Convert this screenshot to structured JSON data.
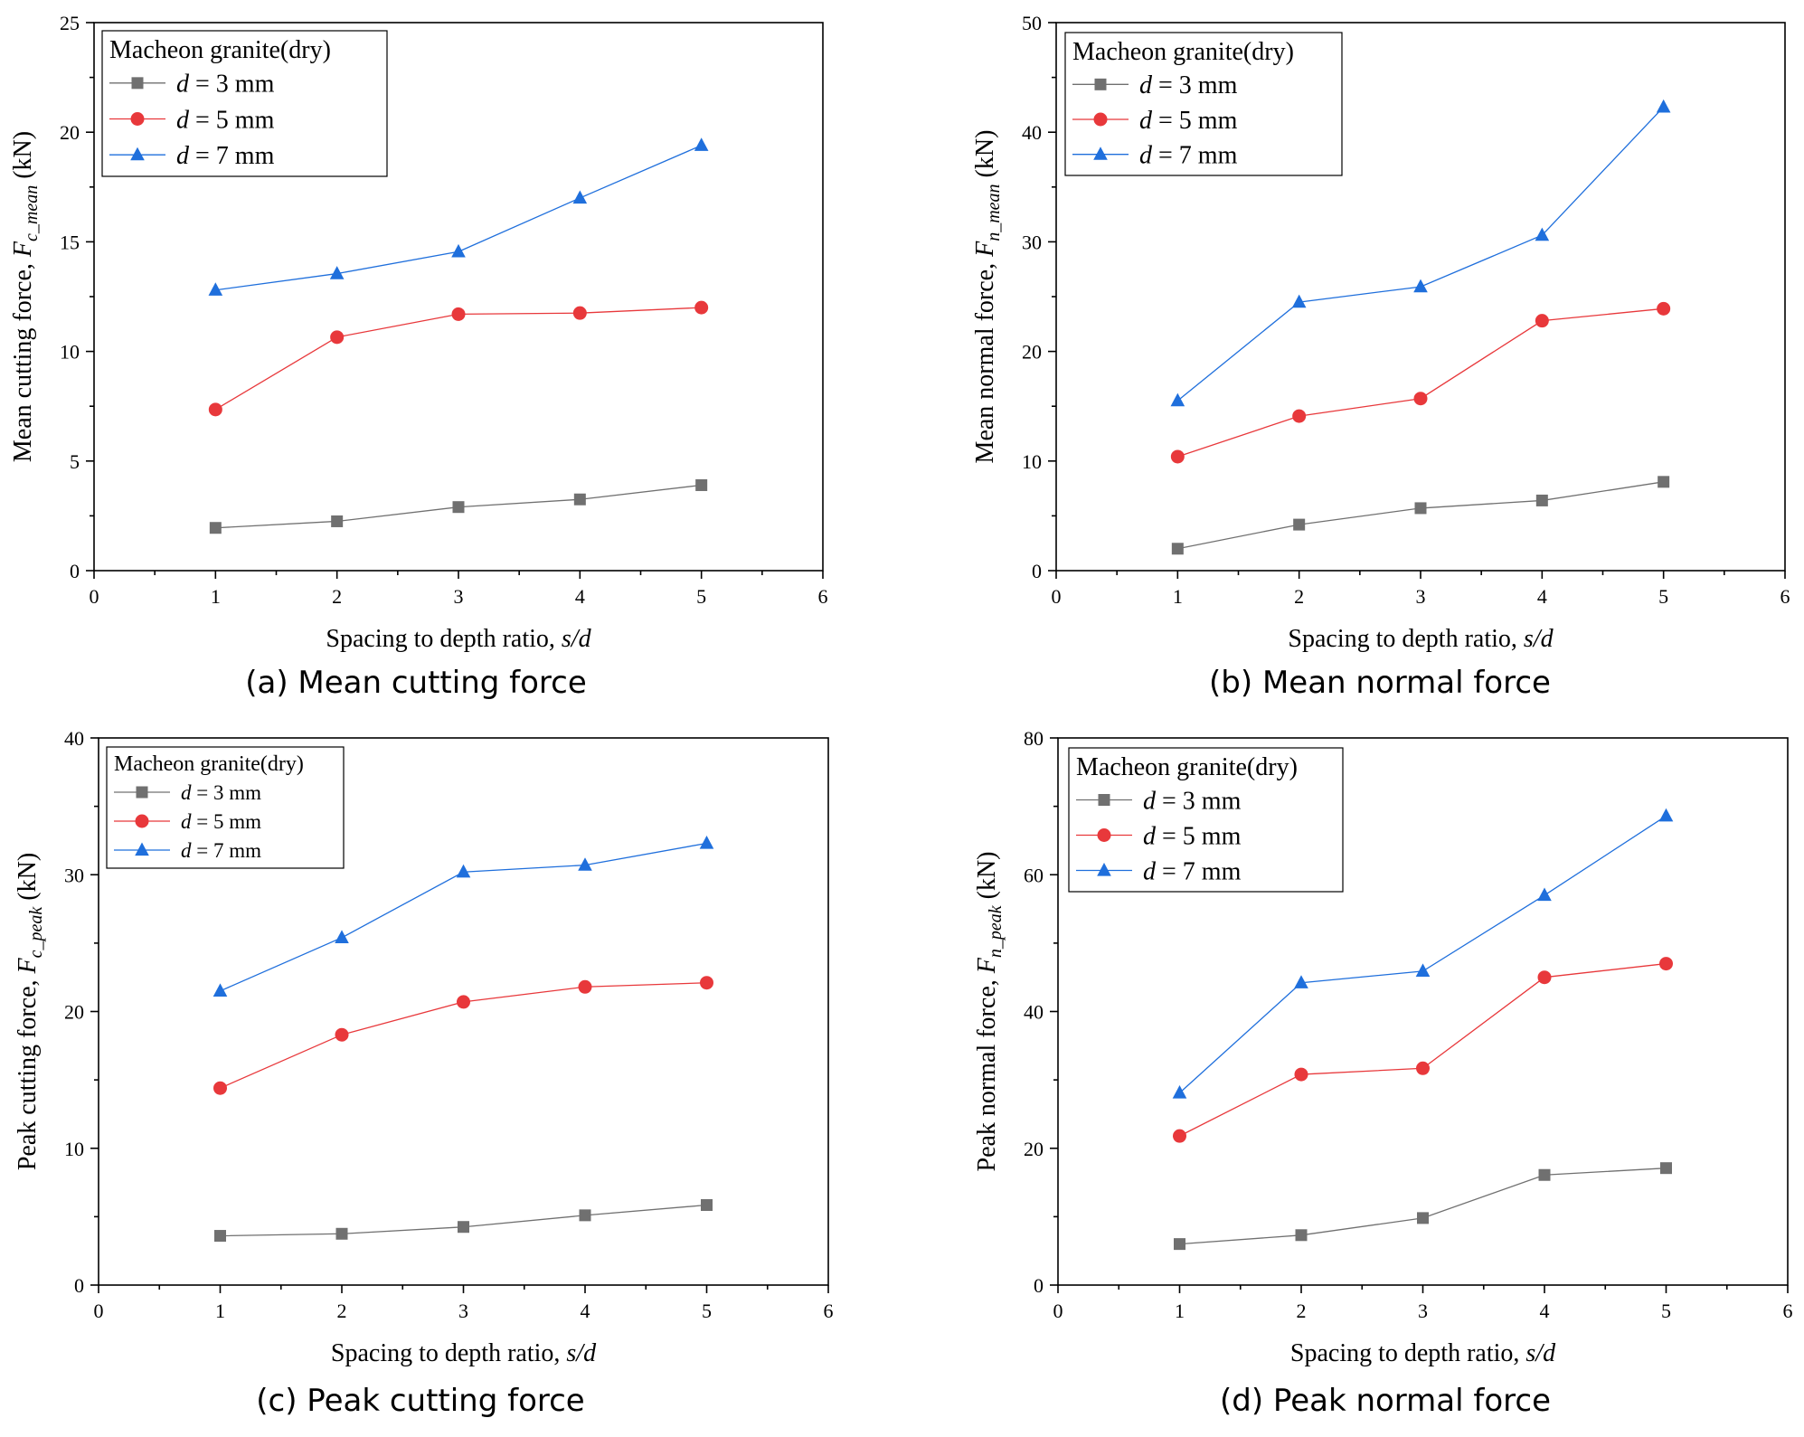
{
  "colors": {
    "d3": "#707070",
    "d5": "#e8383b",
    "d7": "#1f6fdc"
  },
  "chart_data": [
    {
      "type": "line",
      "caption": "(a) Mean cutting force",
      "xlabel": "Spacing to depth ratio, s/d",
      "ylabel": "Mean cutting force, F_c_mean (kN)",
      "xlim": [
        0,
        6
      ],
      "ylim": [
        0,
        25
      ],
      "xticks": [
        0,
        1,
        2,
        3,
        4,
        5,
        6
      ],
      "yticks": [
        0,
        5,
        10,
        15,
        20,
        25
      ],
      "legend_title": "Macheon granite(dry)",
      "legend_position": "top-left",
      "x": [
        1,
        2,
        3,
        4,
        5
      ],
      "series": [
        {
          "name": "d = 3 mm",
          "marker": "square",
          "values": [
            1.95,
            2.25,
            2.9,
            3.25,
            3.9
          ]
        },
        {
          "name": "d = 5 mm",
          "marker": "circle",
          "values": [
            7.35,
            10.65,
            11.7,
            11.75,
            12.0
          ]
        },
        {
          "name": "d = 7 mm",
          "marker": "triangle",
          "values": [
            12.8,
            13.55,
            14.55,
            17.0,
            19.4
          ]
        }
      ]
    },
    {
      "type": "line",
      "caption": "(b) Mean normal force",
      "xlabel": "Spacing to depth ratio, s/d",
      "ylabel": "Mean normal force, F_n_mean (kN)",
      "xlim": [
        0,
        6
      ],
      "ylim": [
        0,
        50
      ],
      "xticks": [
        0,
        1,
        2,
        3,
        4,
        5,
        6
      ],
      "yticks": [
        0,
        10,
        20,
        30,
        40,
        50
      ],
      "legend_title": "Macheon granite(dry)",
      "legend_position": "top-left",
      "x": [
        1,
        2,
        3,
        4,
        5
      ],
      "series": [
        {
          "name": "d = 3 mm",
          "marker": "square",
          "values": [
            2.0,
            4.2,
            5.7,
            6.4,
            8.1
          ]
        },
        {
          "name": "d = 5 mm",
          "marker": "circle",
          "values": [
            10.4,
            14.1,
            15.7,
            22.8,
            23.9
          ]
        },
        {
          "name": "d = 7 mm",
          "marker": "triangle",
          "values": [
            15.5,
            24.5,
            25.9,
            30.6,
            42.3
          ]
        }
      ]
    },
    {
      "type": "line",
      "caption": "(c) Peak cutting force",
      "xlabel": "Spacing to depth ratio, s/d",
      "ylabel": "Peak cutting force, F_c_peak (kN)",
      "xlim": [
        0,
        6
      ],
      "ylim": [
        0,
        40
      ],
      "xticks": [
        0,
        1,
        2,
        3,
        4,
        5,
        6
      ],
      "yticks": [
        0,
        10,
        20,
        30,
        40
      ],
      "legend_title": "Macheon granite(dry)",
      "legend_position": "top-left",
      "x": [
        1,
        2,
        3,
        4,
        5
      ],
      "series": [
        {
          "name": "d = 3 mm",
          "marker": "square",
          "values": [
            3.6,
            3.75,
            4.25,
            5.1,
            5.85
          ]
        },
        {
          "name": "d = 5 mm",
          "marker": "circle",
          "values": [
            14.4,
            18.3,
            20.7,
            21.8,
            22.1
          ]
        },
        {
          "name": "d = 7 mm",
          "marker": "triangle",
          "values": [
            21.5,
            25.4,
            30.2,
            30.7,
            32.3
          ]
        }
      ]
    },
    {
      "type": "line",
      "caption": "(d) Peak normal force",
      "xlabel": "Spacing to depth ratio, s/d",
      "ylabel": "Peak normal force, F_n_peak (kN)",
      "xlim": [
        0,
        6
      ],
      "ylim": [
        0,
        80
      ],
      "xticks": [
        0,
        1,
        2,
        3,
        4,
        5,
        6
      ],
      "yticks": [
        0,
        20,
        40,
        60,
        80
      ],
      "legend_title": "Macheon granite(dry)",
      "legend_position": "top-left",
      "x": [
        1,
        2,
        3,
        4,
        5
      ],
      "series": [
        {
          "name": "d = 3 mm",
          "marker": "square",
          "values": [
            6.0,
            7.3,
            9.8,
            16.1,
            17.1
          ]
        },
        {
          "name": "d = 5 mm",
          "marker": "circle",
          "values": [
            21.8,
            30.8,
            31.7,
            45.0,
            47.0
          ]
        },
        {
          "name": "d = 7 mm",
          "marker": "triangle",
          "values": [
            28.1,
            44.2,
            45.9,
            57.0,
            68.6
          ]
        }
      ]
    }
  ]
}
